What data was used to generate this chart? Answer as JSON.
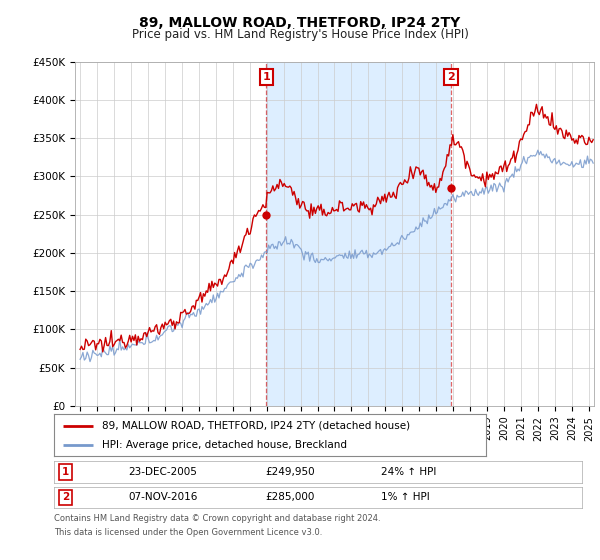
{
  "title": "89, MALLOW ROAD, THETFORD, IP24 2TY",
  "subtitle": "Price paid vs. HM Land Registry's House Price Index (HPI)",
  "ylabel_ticks": [
    "£0",
    "£50K",
    "£100K",
    "£150K",
    "£200K",
    "£250K",
    "£300K",
    "£350K",
    "£400K",
    "£450K"
  ],
  "ylim": [
    0,
    450000
  ],
  "xlim_start": 1994.7,
  "xlim_end": 2025.3,
  "sale1": {
    "date_num": 2005.98,
    "price": 249950,
    "label": "1",
    "date_str": "23-DEC-2005",
    "pct": "24% ↑ HPI"
  },
  "sale2": {
    "date_num": 2016.86,
    "price": 285000,
    "label": "2",
    "date_str": "07-NOV-2016",
    "pct": "1% ↑ HPI"
  },
  "legend_line1": "89, MALLOW ROAD, THETFORD, IP24 2TY (detached house)",
  "legend_line2": "HPI: Average price, detached house, Breckland",
  "footer1": "Contains HM Land Registry data © Crown copyright and database right 2024.",
  "footer2": "This data is licensed under the Open Government Licence v3.0.",
  "red_color": "#cc0000",
  "blue_color": "#7799cc",
  "bg_color": "#ffffff",
  "highlight_color": "#ddeeff",
  "grid_color": "#cccccc",
  "annotation_box_color": "#cc0000",
  "hpi_key_years": [
    1995,
    1996,
    1997,
    1998,
    1999,
    2000,
    2001,
    2002,
    2003,
    2004,
    2005,
    2006,
    2007,
    2008,
    2009,
    2010,
    2011,
    2012,
    2013,
    2014,
    2015,
    2016,
    2017,
    2018,
    2019,
    2020,
    2021,
    2022,
    2023,
    2024,
    2025
  ],
  "hpi_key_vals": [
    65000,
    68000,
    72000,
    77000,
    85000,
    97000,
    110000,
    125000,
    143000,
    163000,
    183000,
    200000,
    215000,
    205000,
    190000,
    195000,
    196000,
    198000,
    205000,
    218000,
    235000,
    255000,
    270000,
    278000,
    283000,
    290000,
    315000,
    330000,
    320000,
    315000,
    320000
  ],
  "red_key_years": [
    1995,
    1996,
    1997,
    1998,
    1999,
    2000,
    2001,
    2002,
    2003,
    2004,
    2005,
    2006,
    2007,
    2008,
    2009,
    2010,
    2011,
    2012,
    2013,
    2014,
    2015,
    2016,
    2017,
    2018,
    2019,
    2020,
    2021,
    2022,
    2023,
    2024,
    2025
  ],
  "red_key_vals": [
    75000,
    80000,
    83000,
    90000,
    95000,
    105000,
    118000,
    137000,
    158000,
    188000,
    235000,
    270000,
    290000,
    265000,
    252000,
    258000,
    260000,
    262000,
    270000,
    290000,
    310000,
    285000,
    345000,
    310000,
    300000,
    310000,
    345000,
    385000,
    365000,
    350000,
    345000
  ],
  "noise_seed": 12345,
  "noise_red": 5000,
  "noise_blue": 3500
}
